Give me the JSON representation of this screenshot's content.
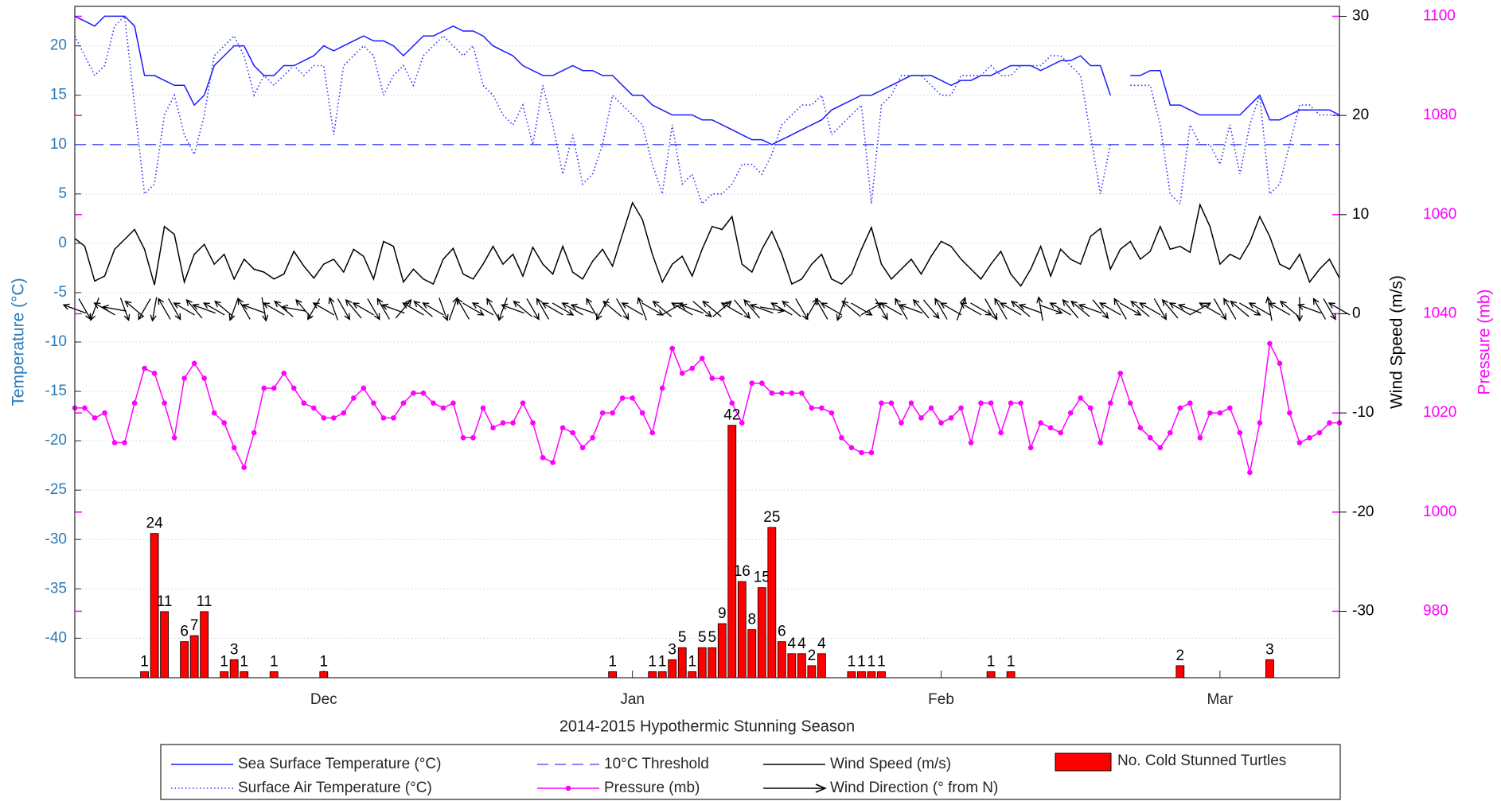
{
  "chart_data": {
    "type": "multi-axis",
    "xlabel": "2014-2015 Hypothermic Stunning Season",
    "ylabel": "Temperature (°C)",
    "y2label": "Wind Speed (m/s)",
    "y3label": "Pressure (mb)",
    "ycolor": "#2a7ab9",
    "y2color": "#000000",
    "y3color": "#ff00ff",
    "xlim": [
      0,
      127
    ],
    "xticks": [
      {
        "value": 25,
        "label": "Dec"
      },
      {
        "value": 56,
        "label": "Jan"
      },
      {
        "value": 87,
        "label": "Feb"
      },
      {
        "value": 115,
        "label": "Mar"
      }
    ],
    "ylim": [
      -44,
      24
    ],
    "yticks": [
      -40,
      -35,
      -30,
      -25,
      -20,
      -15,
      -10,
      -5,
      0,
      5,
      10,
      15,
      20
    ],
    "y2lim": [
      -36.7,
      31
    ],
    "y2ticks": [
      -30,
      -20,
      -10,
      0,
      10,
      20,
      30
    ],
    "y3lim": [
      966.6,
      1102
    ],
    "y3ticks": [
      980,
      1000,
      1020,
      1040,
      1060,
      1080,
      1100
    ],
    "y4lim": [
      0,
      111.7
    ],
    "grid": true,
    "x": [
      0,
      1,
      2,
      3,
      4,
      5,
      6,
      7,
      8,
      9,
      10,
      11,
      12,
      13,
      14,
      15,
      16,
      17,
      18,
      19,
      20,
      21,
      22,
      23,
      24,
      25,
      26,
      27,
      28,
      29,
      30,
      31,
      32,
      33,
      34,
      35,
      36,
      37,
      38,
      39,
      40,
      41,
      42,
      43,
      44,
      45,
      46,
      47,
      48,
      49,
      50,
      51,
      52,
      53,
      54,
      55,
      56,
      57,
      58,
      59,
      60,
      61,
      62,
      63,
      64,
      65,
      66,
      67,
      68,
      69,
      70,
      71,
      72,
      73,
      74,
      75,
      76,
      77,
      78,
      79,
      80,
      81,
      82,
      83,
      84,
      85,
      86,
      87,
      88,
      89,
      90,
      91,
      92,
      93,
      94,
      95,
      96,
      97,
      98,
      99,
      100,
      101,
      102,
      103,
      104,
      105,
      106,
      107,
      108,
      109,
      110,
      111,
      112,
      113,
      114,
      115,
      116,
      117,
      118,
      119,
      120,
      121,
      122,
      123,
      124,
      125,
      126,
      127
    ],
    "threshold": {
      "name": "10°C Threshold",
      "value": 10,
      "color": "#5a5aff",
      "style": "dashed"
    },
    "series": [
      {
        "name": "Sea Surface Temperature (°C)",
        "type": "line",
        "axis": "y",
        "color": "#1a1aff",
        "style": "solid",
        "values": [
          23,
          22.5,
          22,
          23,
          23,
          23,
          22,
          17,
          17,
          16.5,
          16,
          16,
          14,
          15,
          18,
          19,
          20,
          20,
          18,
          17,
          17,
          18,
          18,
          18.5,
          19,
          20,
          19.5,
          20,
          20.5,
          21,
          20.5,
          20.5,
          20,
          19,
          20,
          21,
          21,
          21.5,
          22,
          21.5,
          21.5,
          21,
          20,
          19.5,
          19,
          18,
          17.5,
          17,
          17,
          17.5,
          18,
          17.5,
          17.5,
          17,
          17,
          16,
          15,
          15,
          14,
          13.5,
          13,
          13,
          13,
          12.5,
          12.5,
          12,
          11.5,
          11,
          10.5,
          10.5,
          10,
          10.5,
          11,
          11.5,
          12,
          12.5,
          13.5,
          14,
          14.5,
          15,
          15,
          15.5,
          16,
          16.5,
          17,
          17,
          17,
          16.5,
          16,
          16.5,
          16.5,
          17,
          17,
          17.5,
          18,
          18,
          18,
          17.5,
          18,
          18.5,
          18.5,
          19,
          18,
          18,
          15,
          null,
          17,
          17,
          17.5,
          17.5,
          14,
          14,
          13.5,
          13,
          13,
          13,
          13,
          13,
          14,
          15,
          12.5,
          12.5,
          13,
          13.5,
          13.5,
          13.5,
          13.5,
          13
        ]
      },
      {
        "name": "Surface Air Temperature (°C)",
        "type": "line",
        "axis": "y",
        "color": "#3030ff",
        "style": "dotted",
        "values": [
          21,
          19,
          17,
          18,
          22,
          23,
          14,
          5,
          6,
          13,
          15,
          11,
          9,
          13,
          19,
          20,
          21,
          19,
          15,
          17,
          16,
          17,
          18,
          17,
          18,
          18,
          11,
          18,
          19,
          20,
          19,
          15,
          17,
          18,
          16,
          19,
          20,
          21,
          20,
          19,
          20,
          16,
          15,
          13,
          12,
          14,
          10,
          16,
          12,
          7,
          11,
          6,
          7,
          10,
          15,
          14,
          13,
          12,
          8,
          5,
          12,
          6,
          7,
          4,
          5,
          5,
          6,
          8,
          8,
          7,
          9,
          12,
          13,
          14,
          14,
          15,
          11,
          12,
          13,
          14,
          4,
          14,
          15,
          17,
          17,
          17,
          16,
          15,
          15,
          17,
          17,
          17,
          18,
          17,
          17,
          18,
          18,
          18,
          19,
          19,
          18,
          17,
          11,
          5,
          10,
          null,
          16,
          16,
          16,
          12,
          5,
          4,
          12,
          10,
          10,
          8,
          12,
          7,
          12,
          15,
          5,
          6,
          10,
          14,
          14,
          13,
          13,
          13
        ]
      },
      {
        "name": "Wind Speed (m/s)",
        "type": "line",
        "axis": "y2",
        "color": "#000000",
        "style": "solid",
        "values": [
          7.6,
          6.8,
          3.3,
          3.8,
          6.5,
          7.5,
          8.5,
          6.5,
          2.9,
          8.8,
          8,
          3.2,
          6,
          7,
          5,
          6,
          3.5,
          5.5,
          4.5,
          4.2,
          3.5,
          4,
          6.3,
          4.8,
          3.6,
          5,
          5.5,
          4.2,
          6.5,
          5.8,
          3.5,
          7.3,
          6.8,
          3.2,
          4.5,
          3.5,
          3,
          5.5,
          6.6,
          4,
          3.5,
          5,
          6.8,
          5,
          6,
          3.8,
          6.7,
          5,
          4,
          6.8,
          4.2,
          3.5,
          5.3,
          6.5,
          4.8,
          8,
          11.2,
          9.5,
          6,
          3.2,
          5,
          5.8,
          3.8,
          6.5,
          8.8,
          8.5,
          9.8,
          5,
          4.2,
          6.5,
          8.3,
          6,
          3,
          3.5,
          5,
          6,
          3.5,
          3,
          4,
          6.5,
          8.7,
          5,
          3.5,
          4.5,
          5.5,
          4,
          5.8,
          7.3,
          6.8,
          5.5,
          4.5,
          3.5,
          5,
          6.3,
          4,
          2.8,
          4.5,
          6.8,
          3.8,
          6.5,
          5.5,
          5,
          7.8,
          8.6,
          4.5,
          6.5,
          7.3,
          5.5,
          6.3,
          8.8,
          6.5,
          6.8,
          6.2,
          11,
          8.8,
          5,
          6,
          5.5,
          7.2,
          9.8,
          7.8,
          5,
          4.5,
          6,
          3.2,
          4.5,
          5.5,
          3.6
        ]
      },
      {
        "name": "Pressure (mb)",
        "type": "line",
        "axis": "y3",
        "color": "#ff00ff",
        "style": "solid",
        "marker": "o",
        "values": [
          1021,
          1021,
          1019,
          1020,
          1014,
          1014,
          1022,
          1029,
          1028,
          1022,
          1015,
          1027,
          1030,
          1027,
          1020,
          1018,
          1013,
          1009,
          1016,
          1025,
          1025,
          1028,
          1025,
          1022,
          1021,
          1019,
          1019,
          1020,
          1023,
          1025,
          1022,
          1019,
          1019,
          1022,
          1024,
          1024,
          1022,
          1021,
          1022,
          1015,
          1015,
          1021,
          1017,
          1018,
          1018,
          1022,
          1018,
          1011,
          1010,
          1017,
          1016,
          1013,
          1015,
          1020,
          1020,
          1023,
          1023,
          1020,
          1016,
          1025,
          1033,
          1028,
          1029,
          1031,
          1027,
          1027,
          1022,
          1018,
          1026,
          1026,
          1024,
          1024,
          1024,
          1024,
          1021,
          1021,
          1020,
          1015,
          1013,
          1012,
          1012,
          1022,
          1022,
          1018,
          1022,
          1019,
          1021,
          1018,
          1019,
          1021,
          1014,
          1022,
          1022,
          1016,
          1022,
          1022,
          1013,
          1018,
          1017,
          1016,
          1020,
          1023,
          1021,
          1014,
          1022,
          1028,
          1022,
          1017,
          1015,
          1013,
          1016,
          1021,
          1022,
          1015,
          1020,
          1020,
          1021,
          1016,
          1008,
          1018,
          1034,
          1030,
          1020,
          1014,
          1015,
          1016,
          1018,
          1018
        ]
      },
      {
        "name": "No. Cold Stunned Turtles",
        "type": "bar",
        "axis": "y4",
        "color": "#ff0000",
        "x": [
          7,
          8,
          9,
          11,
          12,
          13,
          15,
          16,
          17,
          20,
          25,
          54,
          58,
          59,
          60,
          61,
          62,
          63,
          64,
          65,
          66,
          67,
          68,
          69,
          70,
          71,
          72,
          73,
          74,
          75,
          78,
          79,
          80,
          81,
          92,
          94,
          111,
          120
        ],
        "values": [
          1,
          24,
          11,
          6,
          7,
          11,
          1,
          3,
          1,
          1,
          1,
          1,
          1,
          1,
          3,
          5,
          1,
          5,
          5,
          9,
          42,
          16,
          8,
          15,
          25,
          6,
          4,
          4,
          2,
          4,
          1,
          1,
          1,
          1,
          1,
          1,
          2,
          3
        ]
      },
      {
        "name": "Wind Direction (° from N)",
        "type": "arrow",
        "color": "#000000",
        "values": [
          290,
          150,
          200,
          300,
          280,
          160,
          310,
          210,
          190,
          330,
          150,
          300,
          320,
          290,
          300,
          310,
          200,
          330,
          290,
          170,
          300,
          310,
          280,
          320,
          210,
          300,
          340,
          150,
          320,
          300,
          150,
          330,
          290,
          40,
          300,
          310,
          300,
          160,
          20,
          330,
          120,
          300,
          330,
          200,
          290,
          310,
          150,
          330,
          300,
          120,
          300,
          290,
          330,
          210,
          310,
          150,
          300,
          340,
          120,
          310,
          60,
          300,
          290,
          130,
          310,
          50,
          300,
          140,
          320,
          290,
          100,
          300,
          310,
          150,
          30,
          330,
          300,
          200,
          310,
          120,
          60,
          150,
          300,
          330,
          290,
          320,
          140,
          330,
          300,
          20,
          300,
          120,
          150,
          330,
          300,
          310,
          290,
          350,
          110,
          300,
          320,
          310,
          290,
          140,
          300,
          330,
          120,
          310,
          300,
          150,
          320,
          300,
          290,
          60,
          300,
          150,
          330,
          310,
          120,
          300,
          350,
          300,
          310,
          180,
          290,
          330,
          150,
          300
        ]
      }
    ]
  }
}
